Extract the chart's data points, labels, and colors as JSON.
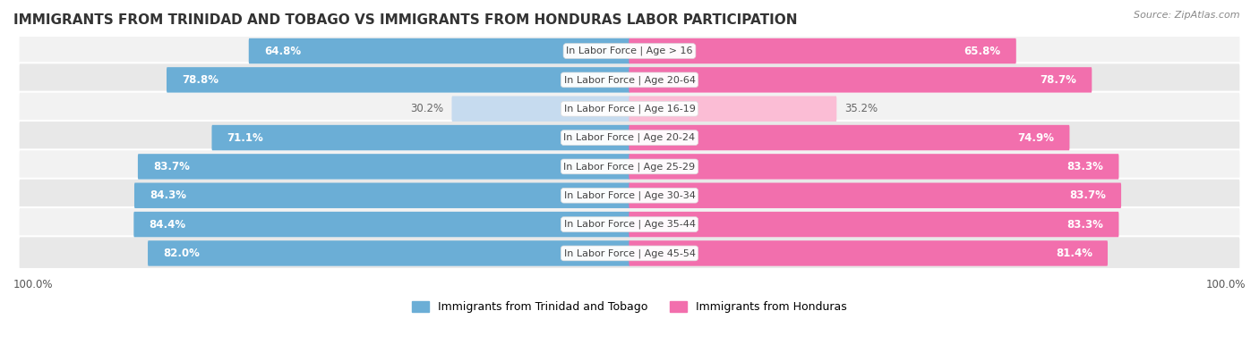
{
  "title": "IMMIGRANTS FROM TRINIDAD AND TOBAGO VS IMMIGRANTS FROM HONDURAS LABOR PARTICIPATION",
  "source": "Source: ZipAtlas.com",
  "categories": [
    "In Labor Force | Age > 16",
    "In Labor Force | Age 20-64",
    "In Labor Force | Age 16-19",
    "In Labor Force | Age 20-24",
    "In Labor Force | Age 25-29",
    "In Labor Force | Age 30-34",
    "In Labor Force | Age 35-44",
    "In Labor Force | Age 45-54"
  ],
  "trinidad_values": [
    64.8,
    78.8,
    30.2,
    71.1,
    83.7,
    84.3,
    84.4,
    82.0
  ],
  "honduras_values": [
    65.8,
    78.7,
    35.2,
    74.9,
    83.3,
    83.7,
    83.3,
    81.4
  ],
  "trinidad_color": "#6BAED6",
  "trinidad_color_light": "#C6DBEF",
  "honduras_color": "#F26FAD",
  "honduras_color_light": "#FBBDD5",
  "row_bg_color_odd": "#F2F2F2",
  "row_bg_color_even": "#E8E8E8",
  "label_color_white": "#FFFFFF",
  "label_color_dark": "#666666",
  "max_value": 100.0,
  "legend_trinidad": "Immigrants from Trinidad and Tobago",
  "legend_honduras": "Immigrants from Honduras",
  "axis_label_left": "100.0%",
  "axis_label_right": "100.0%",
  "title_fontsize": 11,
  "bar_fontsize": 8.5,
  "category_fontsize": 8,
  "legend_fontsize": 9,
  "threshold": 50
}
